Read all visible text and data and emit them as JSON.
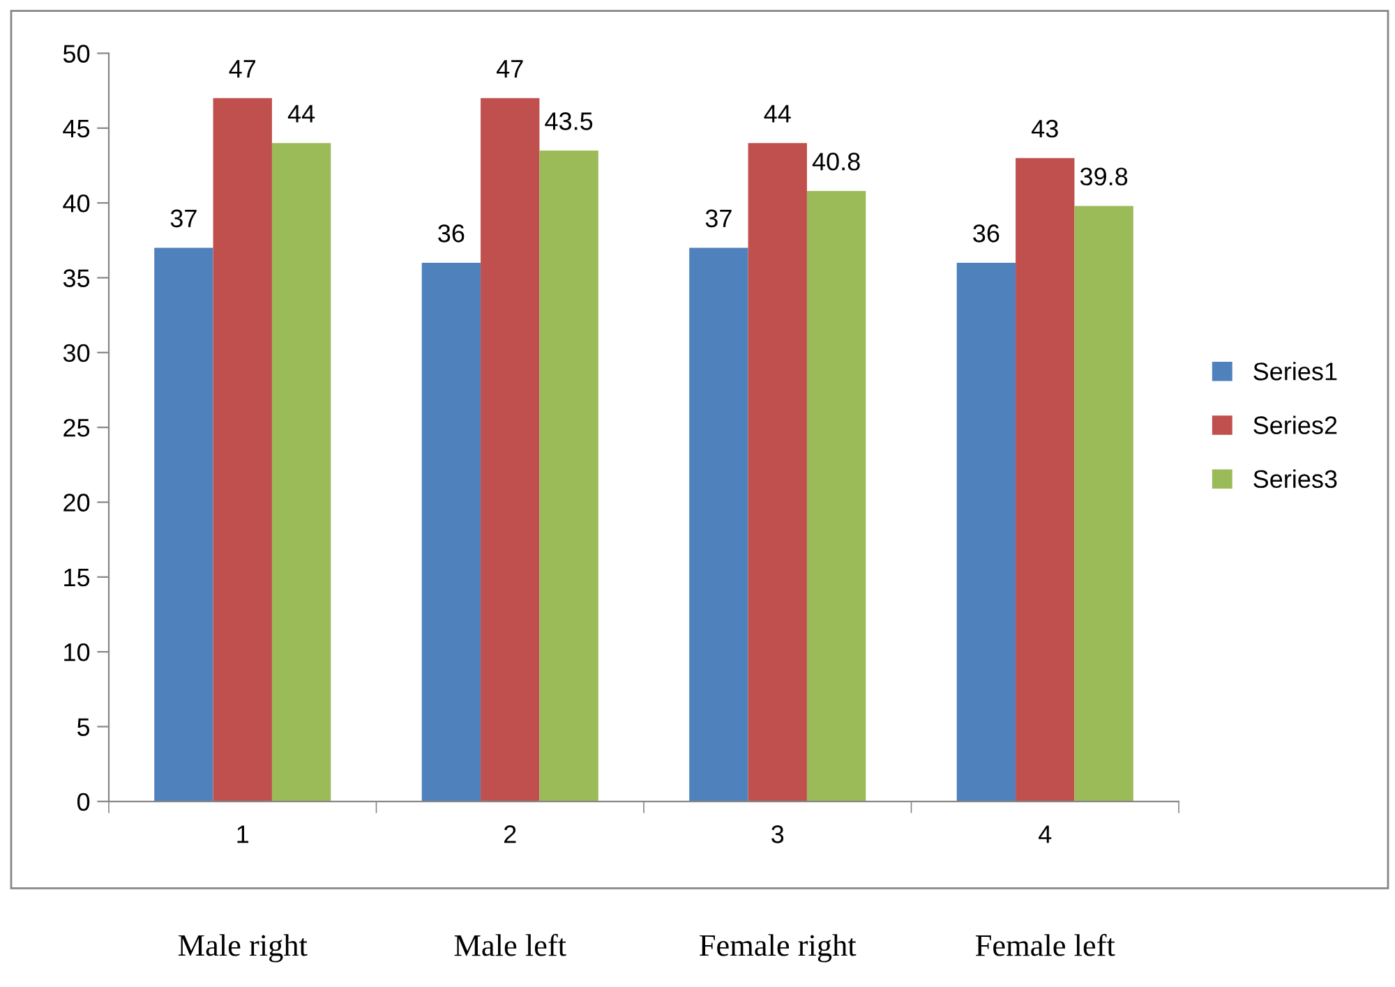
{
  "chart_data": {
    "type": "bar",
    "categories": [
      "1",
      "2",
      "3",
      "4"
    ],
    "series": [
      {
        "name": "Series1",
        "color": "#4f81bd",
        "values": [
          37,
          36,
          37,
          36
        ]
      },
      {
        "name": "Series2",
        "color": "#c0504d",
        "values": [
          47,
          47,
          44,
          43
        ]
      },
      {
        "name": "Series3",
        "color": "#9bbb59",
        "values": [
          44,
          43.5,
          40.8,
          39.8
        ]
      }
    ],
    "ylim": [
      0,
      50
    ],
    "yticks": [
      0,
      5,
      10,
      15,
      20,
      25,
      30,
      35,
      40,
      45,
      50
    ],
    "grid": false,
    "legend": "right",
    "data_labels": true,
    "annotations": [
      "Male right",
      "Male left",
      "Female right",
      "Female left"
    ]
  }
}
